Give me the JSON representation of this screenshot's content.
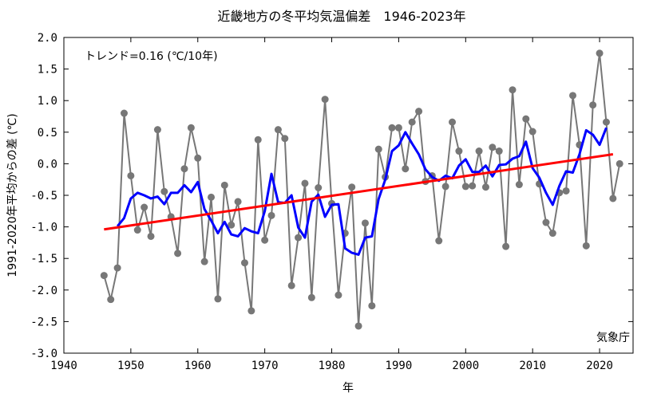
{
  "chart_data": {
    "type": "line",
    "title": "近畿地方の冬平均気温偏差　1946-2023年",
    "xlabel": "年",
    "ylabel": "1991-2020年平均からの差 (℃)",
    "xlim": [
      1940,
      2025
    ],
    "ylim": [
      -3.0,
      2.0
    ],
    "xticks": [
      1940,
      1950,
      1960,
      1970,
      1980,
      1990,
      2000,
      2010,
      2020
    ],
    "yticks": [
      "2.0",
      "1.5",
      "1.0",
      "0.5",
      "0.0",
      "-0.5",
      "-1.0",
      "-1.5",
      "-2.0",
      "-2.5",
      "-3.0"
    ],
    "trend_label": "トレンド=0.16 (℃/10年)",
    "source_label": "気象庁",
    "grid": false,
    "colors": {
      "annual": "#777777",
      "moving_average": "#0000ff",
      "trend": "#ff0000"
    },
    "series": [
      {
        "name": "",
        "style": "gray-line-with-markers",
        "x": [
          1946,
          1947,
          1948,
          1949,
          1950,
          1951,
          1952,
          1953,
          1954,
          1955,
          1956,
          1957,
          1958,
          1959,
          1960,
          1961,
          1962,
          1963,
          1964,
          1965,
          1966,
          1967,
          1968,
          1969,
          1970,
          1971,
          1972,
          1973,
          1974,
          1975,
          1976,
          1977,
          1978,
          1979,
          1980,
          1981,
          1982,
          1983,
          1984,
          1985,
          1986,
          1987,
          1988,
          1989,
          1990,
          1991,
          1992,
          1993,
          1994,
          1995,
          1996,
          1997,
          1998,
          1999,
          2000,
          2001,
          2002,
          2003,
          2004,
          2005,
          2006,
          2007,
          2008,
          2009,
          2010,
          2011,
          2012,
          2013,
          2014,
          2015,
          2016,
          2017,
          2018,
          2019,
          2020,
          2021,
          2022,
          2023
        ],
        "values": [
          -1.77,
          -2.15,
          -1.65,
          0.8,
          -0.19,
          -1.05,
          -0.69,
          -1.15,
          0.54,
          -0.44,
          -0.84,
          -1.42,
          -0.08,
          0.57,
          0.09,
          -1.55,
          -0.53,
          -2.14,
          -0.34,
          -0.97,
          -0.6,
          -1.57,
          -2.33,
          0.38,
          -1.21,
          -0.82,
          0.54,
          0.4,
          -1.93,
          -1.17,
          -0.31,
          -2.12,
          -0.38,
          1.02,
          -0.63,
          -2.08,
          -1.1,
          -0.37,
          -2.57,
          -0.94,
          -2.25,
          0.23,
          -0.21,
          0.57,
          0.57,
          -0.08,
          0.66,
          0.83,
          -0.28,
          -0.19,
          -1.22,
          -0.36,
          0.66,
          0.2,
          -0.36,
          -0.35,
          0.2,
          -0.37,
          0.26,
          0.2,
          -1.31,
          1.17,
          -0.33,
          0.71,
          0.51,
          -0.32,
          -0.93,
          -1.1,
          -0.46,
          -0.43,
          1.08,
          0.3,
          -1.3,
          0.93,
          1.75,
          0.66,
          -0.55,
          0.0
        ]
      },
      {
        "name": "",
        "style": "blue-moving-average",
        "x": [
          1948,
          1949,
          1950,
          1951,
          1952,
          1953,
          1954,
          1955,
          1956,
          1957,
          1958,
          1959,
          1960,
          1961,
          1962,
          1963,
          1964,
          1965,
          1966,
          1967,
          1968,
          1969,
          1970,
          1971,
          1972,
          1973,
          1974,
          1975,
          1976,
          1977,
          1978,
          1979,
          1980,
          1981,
          1982,
          1983,
          1984,
          1985,
          1986,
          1987,
          1988,
          1989,
          1990,
          1991,
          1992,
          1993,
          1994,
          1995,
          1996,
          1997,
          1998,
          1999,
          2000,
          2001,
          2002,
          2003,
          2004,
          2005,
          2006,
          2007,
          2008,
          2009,
          2010,
          2011,
          2012,
          2013,
          2014,
          2015,
          2016,
          2017,
          2018,
          2019,
          2020,
          2021
        ],
        "values": [
          -0.99,
          -0.86,
          -0.55,
          -0.46,
          -0.5,
          -0.55,
          -0.52,
          -0.64,
          -0.46,
          -0.46,
          -0.34,
          -0.45,
          -0.29,
          -0.72,
          -0.9,
          -1.1,
          -0.92,
          -1.12,
          -1.15,
          -1.02,
          -1.07,
          -1.1,
          -0.75,
          -0.16,
          -0.61,
          -0.62,
          -0.5,
          -1.01,
          -1.17,
          -0.6,
          -0.49,
          -0.84,
          -0.65,
          -0.64,
          -1.34,
          -1.41,
          -1.44,
          -1.17,
          -1.15,
          -0.56,
          -0.25,
          0.2,
          0.29,
          0.5,
          0.32,
          0.15,
          -0.09,
          -0.21,
          -0.27,
          -0.19,
          -0.23,
          -0.03,
          0.07,
          -0.13,
          -0.13,
          -0.03,
          -0.2,
          -0.02,
          -0.01,
          0.08,
          0.12,
          0.35,
          -0.07,
          -0.22,
          -0.46,
          -0.65,
          -0.35,
          -0.12,
          -0.14,
          0.15,
          0.53,
          0.46,
          0.3,
          0.57
        ]
      },
      {
        "name": "",
        "style": "red-trend",
        "x": [
          1946,
          2022
        ],
        "values": [
          -1.04,
          0.15
        ]
      }
    ]
  }
}
